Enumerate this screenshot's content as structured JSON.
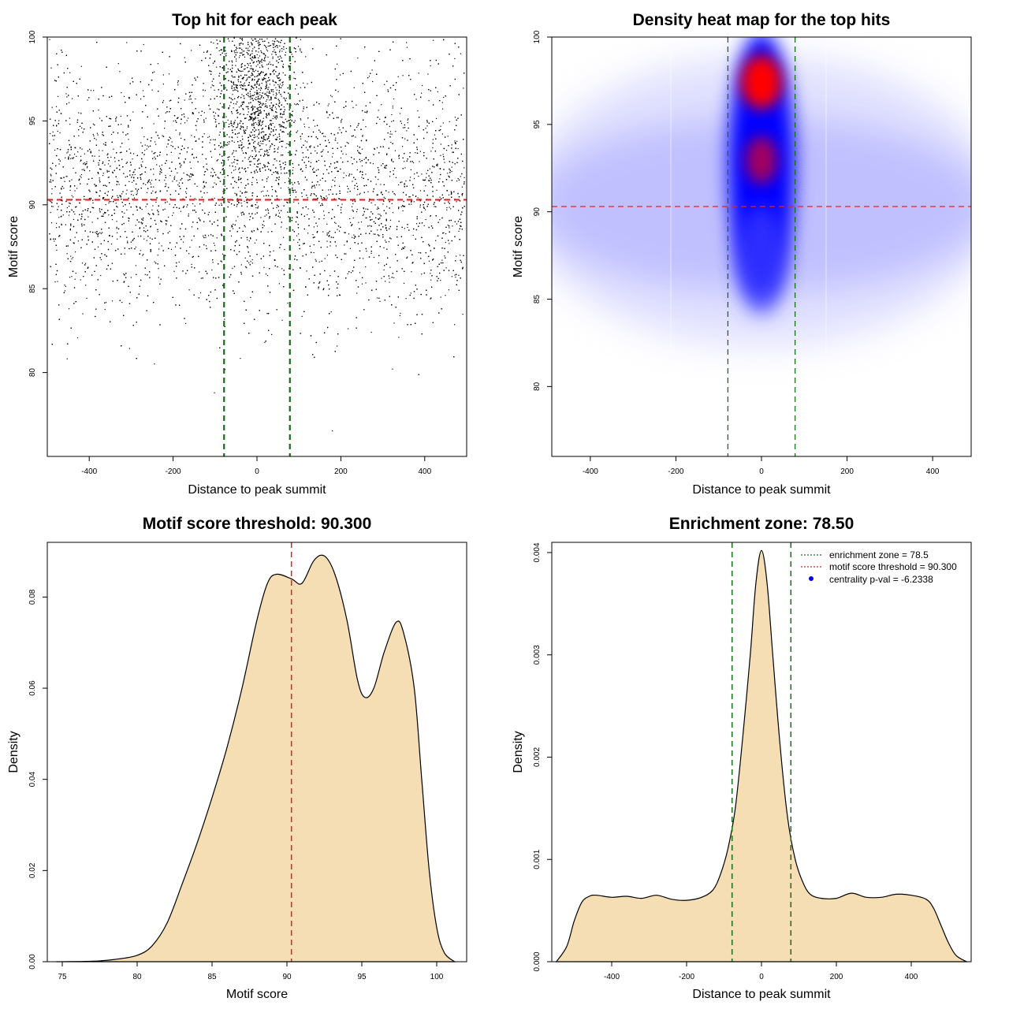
{
  "chart_data": [
    {
      "type": "scatter",
      "title": "Top hit for each peak",
      "xlabel": "Distance to peak summit",
      "ylabel": "Motif score",
      "xlim": [
        -500,
        500
      ],
      "ylim": [
        75,
        100
      ],
      "xticks": [
        -400,
        -200,
        0,
        200,
        400
      ],
      "yticks": [
        80,
        85,
        90,
        95,
        100
      ],
      "point_color": "#000000",
      "density_components": [
        {
          "center_x": 0,
          "spread_x": 45,
          "mean_y": 96.2,
          "sd_y": 2.6,
          "weight": 0.26
        },
        {
          "center_x": 0,
          "spread_x": 500,
          "mean_y": 91.0,
          "sd_y": 3.6,
          "weight": 0.74
        }
      ],
      "point_count": 9000,
      "reference_lines": [
        {
          "orientation": "horizontal",
          "value": 90.3,
          "color": "#d62728",
          "style": "dashed"
        },
        {
          "orientation": "vertical",
          "value": -78.5,
          "color": "#1a6b1a",
          "style": "dashed"
        },
        {
          "orientation": "vertical",
          "value": 78.5,
          "color": "#1a6b1a",
          "style": "dashed"
        }
      ]
    },
    {
      "type": "heatmap",
      "title": "Density heat map for the top hits",
      "xlabel": "Distance to peak summit",
      "ylabel": "Motif score",
      "xlim": [
        -490,
        490
      ],
      "ylim": [
        76,
        100
      ],
      "xticks": [
        -400,
        -200,
        0,
        200,
        400
      ],
      "yticks": [
        80,
        85,
        90,
        95,
        100
      ],
      "colors": [
        "#ffffff",
        "#0000ff",
        "#ff0000"
      ],
      "density_peaks": [
        {
          "x": 0,
          "y": 97.5,
          "intensity": "max"
        },
        {
          "x": 0,
          "y": 93.0,
          "intensity": "high"
        }
      ],
      "reference_lines": [
        {
          "orientation": "horizontal",
          "value": 90.3,
          "color": "#d62728",
          "style": "dashed"
        },
        {
          "orientation": "vertical",
          "value": -78.5,
          "color": "#1a6b1a",
          "style": "dashed"
        },
        {
          "orientation": "vertical",
          "value": 78.5,
          "color": "#1a6b1a",
          "style": "dashed"
        }
      ]
    },
    {
      "type": "area",
      "title": "Motif score threshold: 90.300",
      "xlabel": "Motif score",
      "ylabel": "Density",
      "xlim": [
        74,
        102
      ],
      "ylim": [
        0,
        0.092
      ],
      "xticks": [
        75,
        80,
        85,
        90,
        95,
        100
      ],
      "yticks": [
        0.0,
        0.02,
        0.04,
        0.06,
        0.08
      ],
      "ytick_labels": [
        "0.00",
        "0.02",
        "0.04",
        "0.06",
        "0.08"
      ],
      "fill_color": "#f5deb3",
      "x": [
        74.6,
        77,
        78.5,
        80,
        81,
        82,
        83,
        84,
        85,
        86,
        87,
        88,
        88.7,
        89.3,
        90.3,
        91,
        91.8,
        92.5,
        93.2,
        94,
        94.7,
        95.2,
        95.8,
        96.5,
        97.3,
        97.8,
        98.5,
        99,
        99.5,
        100,
        100.5,
        101.2
      ],
      "values": [
        0,
        0.0001,
        0.0005,
        0.0014,
        0.0035,
        0.0085,
        0.017,
        0.026,
        0.036,
        0.047,
        0.06,
        0.075,
        0.083,
        0.085,
        0.084,
        0.083,
        0.088,
        0.089,
        0.085,
        0.075,
        0.062,
        0.058,
        0.06,
        0.068,
        0.0745,
        0.072,
        0.06,
        0.04,
        0.02,
        0.0075,
        0.002,
        0
      ],
      "reference_lines": [
        {
          "orientation": "vertical",
          "value": 90.3,
          "color": "#d62728",
          "style": "dashed"
        }
      ]
    },
    {
      "type": "area",
      "title": "Enrichment zone: 78.50",
      "xlabel": "Distance to peak summit",
      "ylabel": "Density",
      "xlim": [
        -560,
        560
      ],
      "ylim": [
        0,
        0.0041
      ],
      "xticks": [
        -400,
        -200,
        0,
        200,
        400
      ],
      "yticks": [
        0.0,
        0.001,
        0.002,
        0.003,
        0.004
      ],
      "ytick_labels": [
        "0.000",
        "0.001",
        "0.002",
        "0.003",
        "0.004"
      ],
      "fill_color": "#f5deb3",
      "x": [
        -548,
        -520,
        -500,
        -480,
        -460,
        -440,
        -400,
        -360,
        -320,
        -280,
        -240,
        -200,
        -160,
        -130,
        -110,
        -90,
        -70,
        -50,
        -30,
        -15,
        0,
        15,
        30,
        50,
        70,
        90,
        110,
        130,
        160,
        200,
        240,
        280,
        320,
        360,
        400,
        440,
        460,
        480,
        500,
        520,
        548
      ],
      "values": [
        0,
        0.00015,
        0.0004,
        0.00058,
        0.00064,
        0.00065,
        0.00063,
        0.00064,
        0.00062,
        0.00065,
        0.00061,
        0.0006,
        0.00063,
        0.0007,
        0.00085,
        0.0011,
        0.0015,
        0.0022,
        0.003,
        0.0037,
        0.00402,
        0.0037,
        0.003,
        0.0021,
        0.0014,
        0.001,
        0.00078,
        0.00066,
        0.00062,
        0.00062,
        0.00067,
        0.00063,
        0.00063,
        0.00066,
        0.00065,
        0.00061,
        0.00052,
        0.00035,
        0.00018,
        6e-05,
        0
      ],
      "reference_lines": [
        {
          "orientation": "vertical",
          "value": -78.5,
          "color": "#1a6b1a",
          "style": "dashed"
        },
        {
          "orientation": "vertical",
          "value": 78.5,
          "color": "#1a6b1a",
          "style": "dashed"
        }
      ],
      "legend": {
        "placement": "top-right",
        "entries": [
          {
            "label": "enrichment zone = 78.5",
            "color": "#1a6b1a",
            "symbol": "dotted-line"
          },
          {
            "label": "motif score threshold = 90.300",
            "color": "#d62728",
            "symbol": "dotted-line"
          },
          {
            "label": "centrality p-val = -6.2338",
            "color": "#0000ff",
            "symbol": "dot"
          }
        ]
      }
    }
  ]
}
